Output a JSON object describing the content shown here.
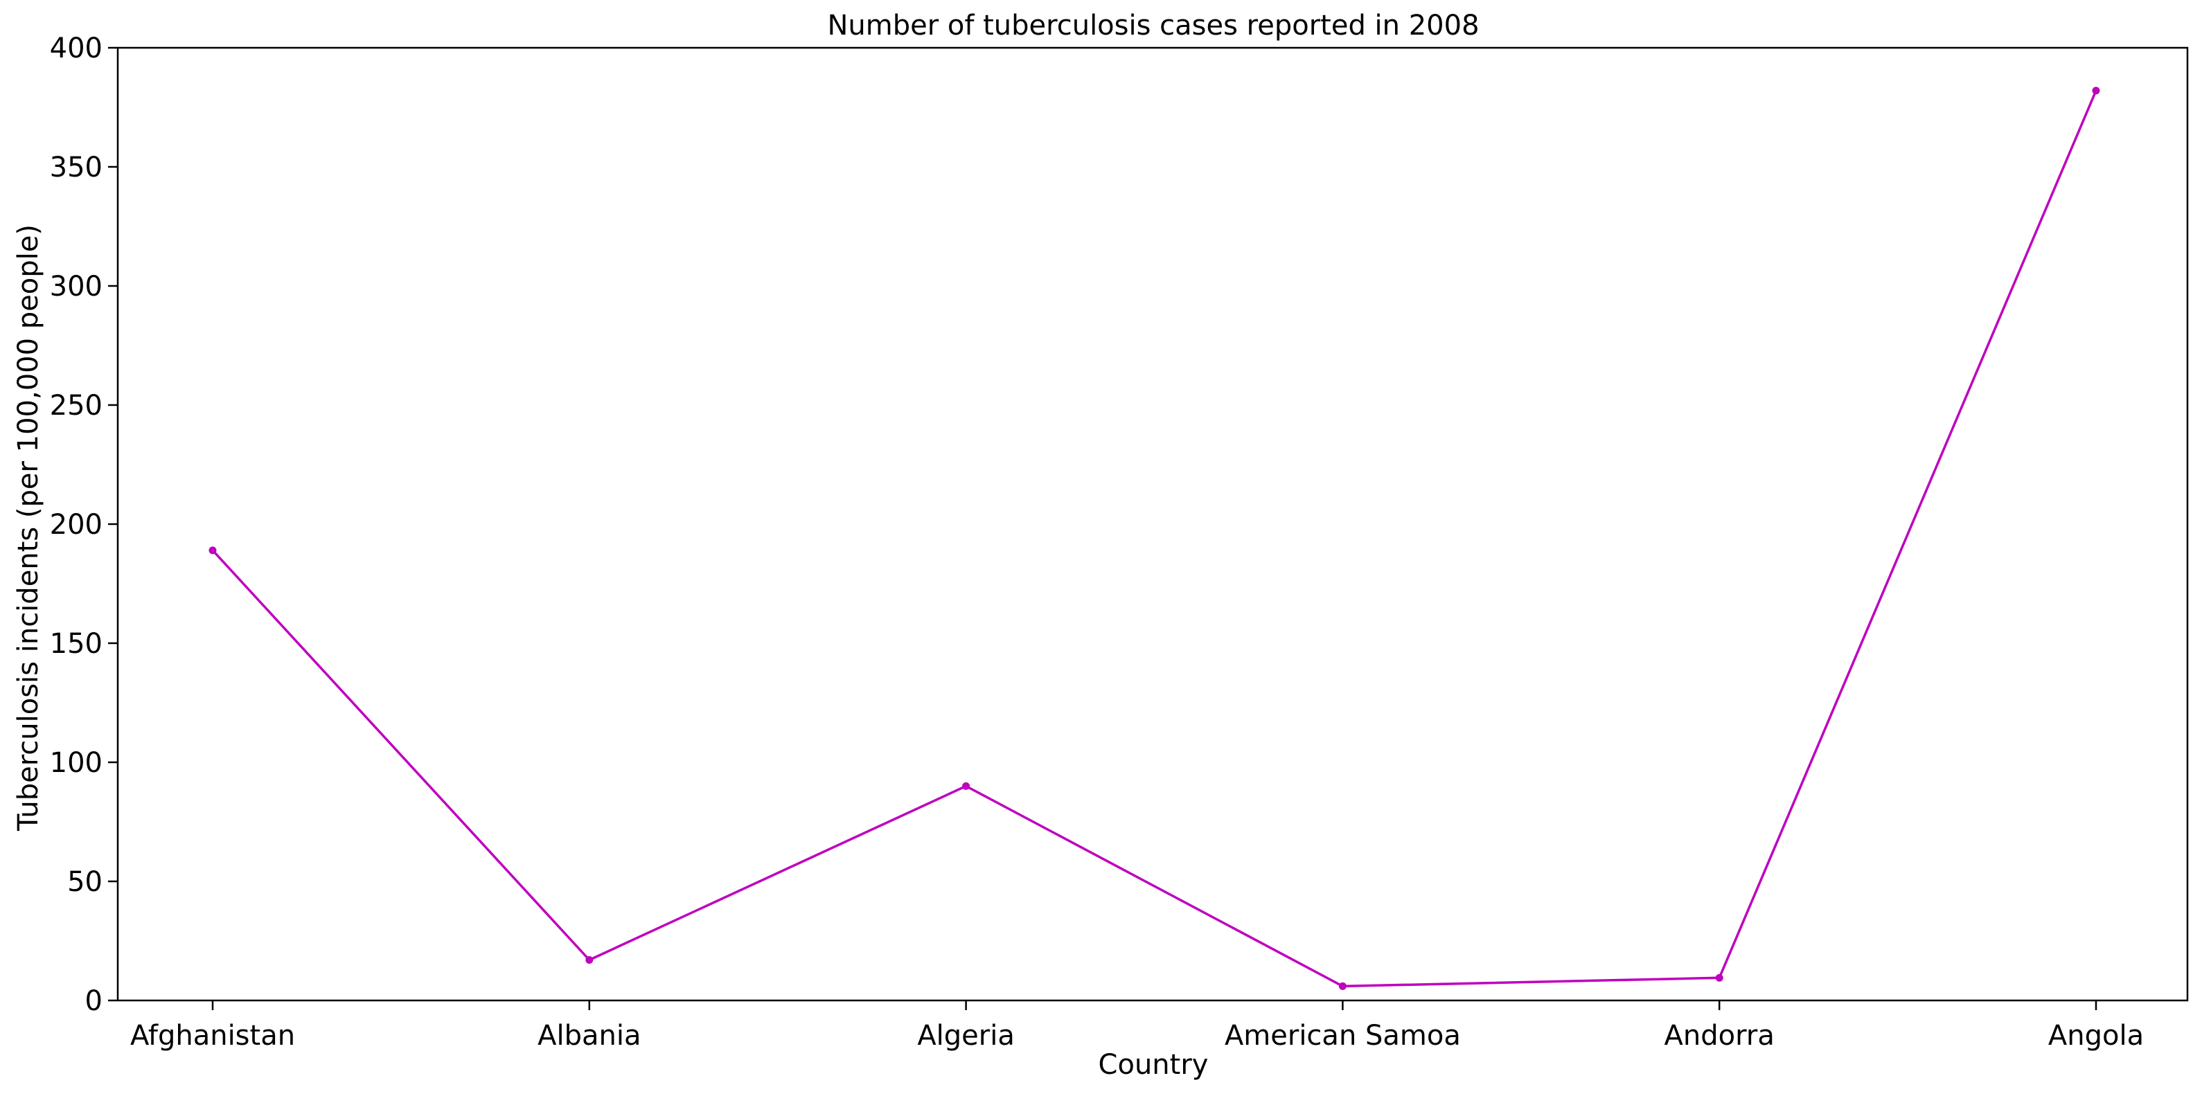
{
  "chart_data": {
    "type": "line",
    "title": "Number of tuberculosis cases reported in 2008",
    "xlabel": "Country",
    "ylabel": "Tuberculosis incidents (per 100,000 people)",
    "categories": [
      "Afghanistan",
      "Albania",
      "Algeria",
      "American Samoa",
      "Andorra",
      "Angola"
    ],
    "series": [
      {
        "values": [
          189,
          17,
          90,
          6,
          9.5,
          382
        ],
        "color": "#bf00bf",
        "marker": "circle"
      }
    ],
    "ylim": [
      0,
      400
    ],
    "yticks": [
      0,
      50,
      100,
      150,
      200,
      250,
      300,
      350,
      400
    ],
    "grid": false,
    "legend": false
  }
}
